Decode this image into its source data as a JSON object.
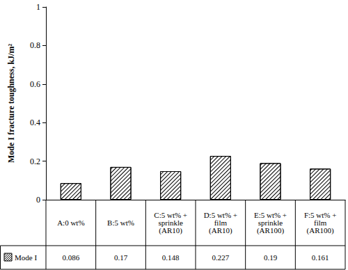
{
  "chart_data": {
    "type": "bar",
    "categories": [
      "A:0 wt%",
      "B:5 wt%",
      "C:5 wt% +\nsprinkle\n(AR10)",
      "D:5 wt% +\nfilm\n(AR10)",
      "E:5 wt% +\nsprinkle\n(AR100)",
      "F:5 wt% +\nfilm\n(AR100)"
    ],
    "series": [
      {
        "name": "Mode I",
        "color": "#000000",
        "values": [
          0.086,
          0.17,
          0.148,
          0.227,
          0.19,
          0.161
        ]
      }
    ],
    "ylabel": "Mode I fracture toughness, kJ/m²",
    "ylim": [
      0,
      1
    ],
    "yticks": [
      0,
      0.2,
      0.4,
      0.6,
      0.8,
      1
    ],
    "grid": false,
    "data_labels": true
  }
}
